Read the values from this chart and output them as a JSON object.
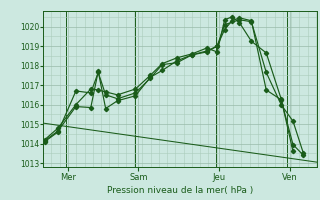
{
  "background_color": "#cce8e0",
  "grid_color_minor": "#aaccbb",
  "grid_color_major": "#99bbaa",
  "line_color": "#1a5c1a",
  "title": "Pression niveau de la mer( hPa )",
  "xlim": [
    0,
    9.2
  ],
  "ylim": [
    1012.8,
    1020.8
  ],
  "yticks": [
    1013,
    1014,
    1015,
    1016,
    1017,
    1018,
    1019,
    1020
  ],
  "xtick_positions": [
    0.85,
    3.2,
    5.9,
    8.3
  ],
  "xtick_labels": [
    "Mer",
    "Sam",
    "Jeu",
    "Ven"
  ],
  "vline_positions": [
    0.75,
    3.1,
    5.8,
    8.2
  ],
  "series1_x": [
    0.05,
    0.5,
    1.1,
    1.6,
    1.85,
    2.1,
    2.5,
    3.1,
    3.6,
    4.0,
    4.5,
    5.0,
    5.5,
    5.85,
    6.1,
    6.35,
    6.6,
    7.0,
    7.5,
    8.0,
    8.4,
    8.75
  ],
  "series1_y": [
    1014.1,
    1014.6,
    1016.7,
    1016.6,
    1017.65,
    1016.5,
    1016.3,
    1016.6,
    1017.35,
    1018.05,
    1018.15,
    1018.55,
    1018.7,
    1019.0,
    1019.85,
    1020.3,
    1020.45,
    1020.3,
    1016.75,
    1016.25,
    1013.95,
    1013.4
  ],
  "series2_x": [
    0.05,
    0.5,
    1.1,
    1.6,
    1.85,
    2.1,
    2.5,
    3.1,
    3.6,
    4.0,
    4.5,
    5.0,
    5.5,
    5.85,
    6.1,
    6.35,
    6.6,
    7.0,
    7.5,
    8.0,
    8.4
  ],
  "series2_y": [
    1014.2,
    1014.8,
    1016.0,
    1016.8,
    1016.75,
    1016.65,
    1016.5,
    1016.8,
    1017.5,
    1018.1,
    1018.4,
    1018.6,
    1018.9,
    1018.7,
    1020.35,
    1020.5,
    1020.2,
    1019.25,
    1018.65,
    1016.3,
    1013.6
  ],
  "series3_x": [
    0.05,
    0.5,
    1.1,
    1.6,
    1.85,
    2.1,
    2.5,
    3.1,
    3.6,
    4.0,
    4.5,
    5.0,
    5.5,
    5.85,
    6.1,
    6.6,
    7.0,
    7.5,
    8.0,
    8.4,
    8.75
  ],
  "series3_y": [
    1014.15,
    1014.65,
    1015.9,
    1015.85,
    1017.7,
    1015.8,
    1016.2,
    1016.45,
    1017.4,
    1017.75,
    1018.25,
    1018.55,
    1018.75,
    1019.0,
    1020.1,
    1020.35,
    1020.25,
    1017.65,
    1016.0,
    1015.15,
    1013.5
  ],
  "trend_x": [
    0.0,
    9.2
  ],
  "trend_y": [
    1015.05,
    1013.05
  ]
}
